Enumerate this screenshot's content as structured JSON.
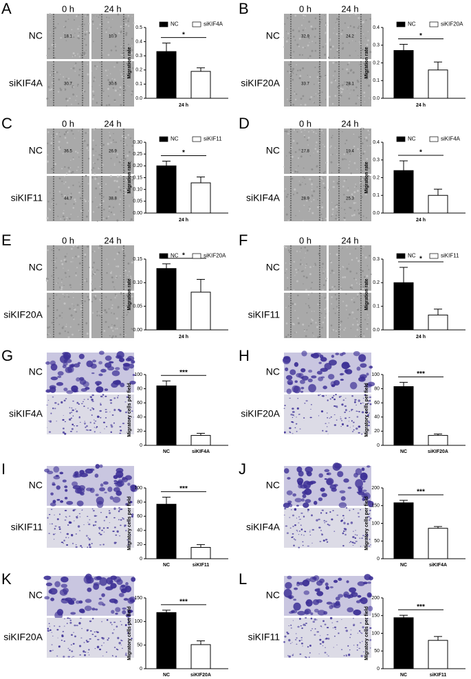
{
  "chart_data": [
    {
      "type": "bar",
      "panel": "A",
      "image_columns": [
        "0 h",
        "24 h"
      ],
      "image_rows": [
        "NC",
        "siKIF4A"
      ],
      "image_values": [
        [
          18.1,
          10.9
        ],
        [
          30.7,
          30.6
        ]
      ],
      "categories": [
        "NC",
        "siKIF4A"
      ],
      "values": [
        0.33,
        0.19
      ],
      "errors": [
        0.06,
        0.025
      ],
      "colors": [
        "#000000",
        "#ffffff"
      ],
      "legend": true,
      "xlabel": "24 h",
      "ylabel": "Migration rate",
      "significance": "*",
      "ylim": [
        0,
        0.5
      ],
      "yticks": [
        {
          "value": 0,
          "label": "0.0"
        },
        0.1,
        0.2,
        0.3,
        0.4,
        0.5
      ]
    },
    {
      "type": "bar",
      "panel": "B",
      "image_columns": [
        "0 h",
        "24 h"
      ],
      "image_rows": [
        "NC",
        "siKIF20A"
      ],
      "image_values": [
        [
          32.9,
          24.2
        ],
        [
          33.7,
          28.1
        ]
      ],
      "categories": [
        "NC",
        "siKIF20A"
      ],
      "values": [
        0.27,
        0.16
      ],
      "errors": [
        0.035,
        0.045
      ],
      "colors": [
        "#000000",
        "#ffffff"
      ],
      "legend": true,
      "xlabel": "24 h",
      "ylabel": "Migration rate",
      "significance": "*",
      "ylim": [
        0,
        0.4
      ],
      "yticks": [
        {
          "value": 0,
          "label": "0.0"
        },
        0.1,
        0.2,
        0.3,
        0.4
      ]
    },
    {
      "type": "bar",
      "panel": "C",
      "image_columns": [
        "0 h",
        "24 h"
      ],
      "image_rows": [
        "NC",
        "siKIF11"
      ],
      "image_values": [
        [
          36.5,
          26.9
        ],
        [
          44.7,
          38.8
        ]
      ],
      "categories": [
        "NC",
        "siKIF11"
      ],
      "values": [
        0.2,
        0.128
      ],
      "errors": [
        0.02,
        0.025
      ],
      "colors": [
        "#000000",
        "#ffffff"
      ],
      "legend": true,
      "xlabel": "24 h",
      "ylabel": "Migration rate",
      "significance": "*",
      "ylim": [
        0,
        0.3
      ],
      "yticks": [
        {
          "value": 0,
          "label": "0.00"
        },
        0.05,
        {
          "value": 0.1,
          "label": "0.10"
        },
        0.15,
        {
          "value": 0.2,
          "label": "0.20"
        },
        0.25,
        {
          "value": 0.3,
          "label": "0.30"
        }
      ]
    },
    {
      "type": "bar",
      "panel": "D",
      "image_columns": [
        "0 h",
        "24 h"
      ],
      "image_rows": [
        "NC",
        "siKIF4A"
      ],
      "image_values": [
        [
          27.8,
          19.4
        ],
        [
          28.9,
          25.3
        ]
      ],
      "categories": [
        "NC",
        "siKIF4A"
      ],
      "values": [
        0.24,
        0.1
      ],
      "errors": [
        0.055,
        0.035
      ],
      "colors": [
        "#000000",
        "#ffffff"
      ],
      "legend": true,
      "xlabel": "24 h",
      "ylabel": "Migration rate",
      "significance": "*",
      "ylim": [
        0,
        0.4
      ],
      "yticks": [
        {
          "value": 0,
          "label": "0.0"
        },
        0.1,
        0.2,
        0.3,
        0.4
      ]
    },
    {
      "type": "bar",
      "panel": "E",
      "image_columns": [
        "0 h",
        "24 h"
      ],
      "image_rows": [
        "NC",
        "siKIF20A"
      ],
      "categories": [
        "NC",
        "siKIF20A"
      ],
      "values": [
        0.13,
        0.08
      ],
      "errors": [
        0.01,
        0.027
      ],
      "colors": [
        "#000000",
        "#ffffff"
      ],
      "legend": true,
      "xlabel": "24 h",
      "ylabel": "Migration rate",
      "significance": "*",
      "ylim": [
        0,
        0.15
      ],
      "yticks": [
        {
          "value": 0,
          "label": "0.00"
        },
        0.05,
        {
          "value": 0.1,
          "label": "0.10"
        },
        0.15
      ]
    },
    {
      "type": "bar",
      "panel": "F",
      "image_columns": [
        "0 h",
        "24 h"
      ],
      "image_rows": [
        "NC",
        "siKIF11"
      ],
      "categories": [
        "NC",
        "siKIF11"
      ],
      "values": [
        0.2,
        0.063
      ],
      "errors": [
        0.065,
        0.025
      ],
      "colors": [
        "#000000",
        "#ffffff"
      ],
      "legend": true,
      "xlabel": "24 h",
      "ylabel": "Migration rate",
      "significance": "*",
      "ylim": [
        0,
        0.3
      ],
      "yticks": [
        {
          "value": 0,
          "label": "0.0"
        },
        0.1,
        0.2,
        0.3
      ]
    },
    {
      "type": "bar",
      "panel": "G",
      "image_rows": [
        "NC",
        "siKIF4A"
      ],
      "categories": [
        "NC",
        "siKIF4A"
      ],
      "values": [
        84,
        14
      ],
      "errors": [
        7,
        3
      ],
      "colors": [
        "#000000",
        "#ffffff"
      ],
      "legend": false,
      "ylabel": "Migratory cells per field",
      "significance": "***",
      "ylim": [
        0,
        100
      ],
      "yticks": [
        0,
        20,
        40,
        60,
        80,
        100
      ]
    },
    {
      "type": "bar",
      "panel": "H",
      "image_rows": [
        "NC",
        "siKIF20A"
      ],
      "categories": [
        "NC",
        "siKIF20A"
      ],
      "values": [
        83,
        14
      ],
      "errors": [
        6,
        2
      ],
      "colors": [
        "#000000",
        "#ffffff"
      ],
      "legend": false,
      "ylabel": "Migratory cells per field",
      "significance": "***",
      "ylim": [
        0,
        100
      ],
      "yticks": [
        0,
        20,
        40,
        60,
        80,
        100
      ]
    },
    {
      "type": "bar",
      "panel": "I",
      "image_rows": [
        "NC",
        "siKIF11"
      ],
      "categories": [
        "NC",
        "siKIF11"
      ],
      "values": [
        77,
        16
      ],
      "errors": [
        10,
        4
      ],
      "colors": [
        "#000000",
        "#ffffff"
      ],
      "legend": false,
      "ylabel": "Migratory cells per field",
      "significance": "***",
      "ylim": [
        0,
        100
      ],
      "yticks": [
        0,
        20,
        40,
        60,
        80,
        100
      ]
    },
    {
      "type": "bar",
      "panel": "J",
      "image_rows": [
        "NC",
        "siKIF4A"
      ],
      "categories": [
        "NC",
        "siKIF4A"
      ],
      "values": [
        158,
        86
      ],
      "errors": [
        7,
        5
      ],
      "colors": [
        "#000000",
        "#ffffff"
      ],
      "legend": false,
      "ylabel": "Migratory cells per field",
      "significance": "***",
      "ylim": [
        0,
        200
      ],
      "yticks": [
        0,
        50,
        100,
        150,
        200
      ]
    },
    {
      "type": "bar",
      "panel": "K",
      "image_rows": [
        "NC",
        "siKIF20A"
      ],
      "categories": [
        "NC",
        "siKIF20A"
      ],
      "values": [
        119,
        51
      ],
      "errors": [
        5,
        8
      ],
      "colors": [
        "#000000",
        "#ffffff"
      ],
      "legend": false,
      "ylabel": "Migratory cells per field",
      "significance": "***",
      "ylim": [
        0,
        150
      ],
      "yticks": [
        0,
        50,
        100,
        150
      ]
    },
    {
      "type": "bar",
      "panel": "L",
      "image_rows": [
        "NC",
        "siKIF11"
      ],
      "categories": [
        "NC",
        "siKIF11"
      ],
      "values": [
        144,
        80
      ],
      "errors": [
        7,
        11
      ],
      "colors": [
        "#000000",
        "#ffffff"
      ],
      "legend": false,
      "ylabel": "Migratory cells per field",
      "significance": "***",
      "ylim": [
        0,
        200
      ],
      "yticks": [
        0,
        50,
        100,
        150,
        200
      ]
    }
  ]
}
